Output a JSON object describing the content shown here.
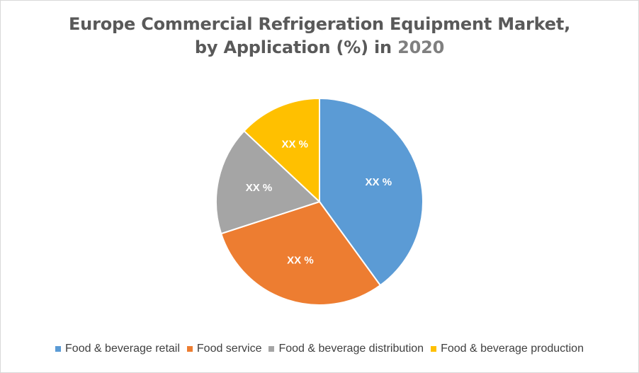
{
  "chart_data": {
    "type": "pie",
    "title_line1": "Europe Commercial Refrigeration Equipment Market,",
    "title_line2": "by Application (%) in",
    "title_year": "2020",
    "legend_position": "bottom",
    "slices": [
      {
        "name": "Food & beverage retail",
        "value": 40,
        "label": "XX %",
        "color": "#5b9bd5"
      },
      {
        "name": "Food service",
        "value": 30,
        "label": "XX %",
        "color": "#ed7d31"
      },
      {
        "name": "Food & beverage distribution",
        "value": 17,
        "label": "XX %",
        "color": "#a5a5a5"
      },
      {
        "name": "Food & beverage production",
        "value": 13,
        "label": "XX %",
        "color": "#ffc000"
      }
    ]
  }
}
